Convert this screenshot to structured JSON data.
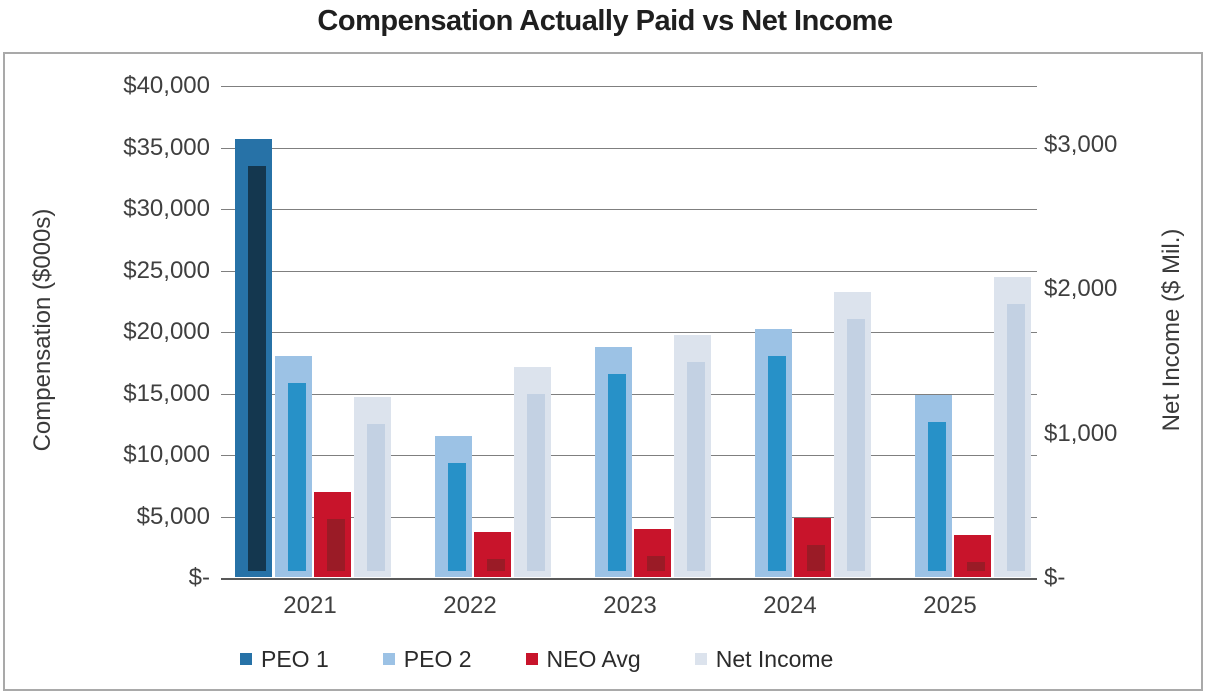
{
  "title": "Compensation Actually Paid vs Net Income",
  "chart_data": {
    "type": "bar",
    "title": "Compensation Actually Paid vs Net Income",
    "categories": [
      "2021",
      "2022",
      "2023",
      "2024",
      "2025"
    ],
    "left_axis": {
      "label": "Compensation ($000s)",
      "unit": "$000s",
      "max": 40000,
      "ticks": [
        {
          "label": "$40,000",
          "value": 40000
        },
        {
          "label": "$35,000",
          "value": 35000
        },
        {
          "label": "$30,000",
          "value": 30000
        },
        {
          "label": "$25,000",
          "value": 25000
        },
        {
          "label": "$20,000",
          "value": 20000
        },
        {
          "label": "$15,000",
          "value": 15000
        },
        {
          "label": "$10,000",
          "value": 10000
        },
        {
          "label": "$5,000",
          "value": 5000
        },
        {
          "label": "$-",
          "value": 0
        }
      ]
    },
    "right_axis": {
      "label": "Net Income ($ Mil.)",
      "unit": "$ Mil.",
      "max": 3410,
      "ticks": [
        {
          "label": "$3,000",
          "value": 3000
        },
        {
          "label": "$2,000",
          "value": 2000
        },
        {
          "label": "$1,000",
          "value": 1000
        },
        {
          "label": "$-",
          "value": 0
        }
      ]
    },
    "series": [
      {
        "name": "PEO 1",
        "axis": "left",
        "color": "#2772a7",
        "inner_color": "#14374f",
        "values": [
          35600,
          null,
          null,
          null,
          null
        ]
      },
      {
        "name": "PEO 2",
        "axis": "left",
        "color": "#9cc2e5",
        "inner_color": "#2791c8",
        "values": [
          17950,
          11450,
          18700,
          20150,
          14800
        ]
      },
      {
        "name": "NEO Avg",
        "axis": "left",
        "color": "#c8142b",
        "inner_color": "#9a1b26",
        "values": [
          6900,
          3650,
          3900,
          4800,
          3400
        ]
      },
      {
        "name": "Net Income",
        "axis": "right",
        "color": "#dce3ed",
        "inner_color": "#c3d1e3",
        "values": [
          1250,
          1455,
          1675,
          1975,
          2080
        ]
      }
    ],
    "grid": true,
    "legend_position": "bottom",
    "colors": {
      "gridline": "#7f7f7f",
      "axis_line": "#595959",
      "border": "#a9a9a9",
      "text": "#3f3f3f",
      "title_text": "#1f1f1f"
    }
  }
}
